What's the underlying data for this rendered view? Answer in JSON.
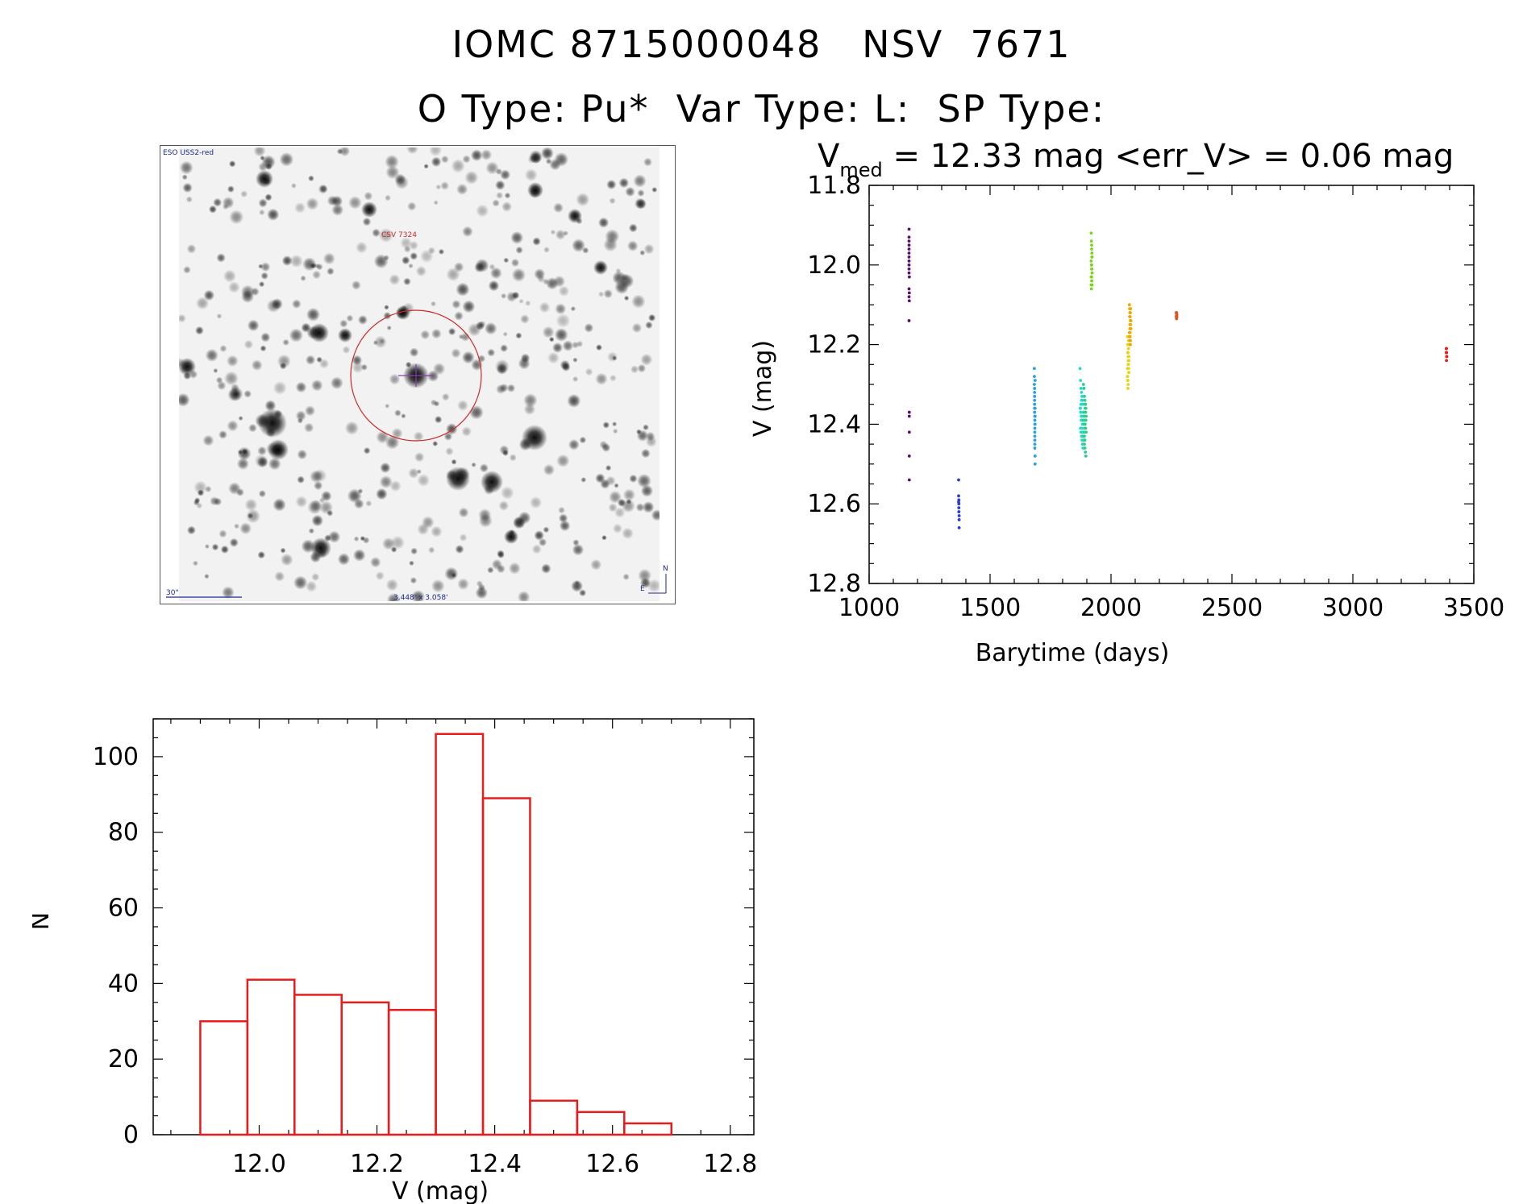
{
  "header": {
    "title_line1": "IOMC 8715000048   NSV  7671",
    "title_line2": "O Type: Pu*  Var Type: L:  SP Type:"
  },
  "finder": {
    "survey_label": "ESO USS2-red",
    "target_label": "CSV 7324",
    "scale_label": "30\"",
    "size_label": "3.448' x 3.058'",
    "north_label": "N",
    "east_label": "E",
    "colors": {
      "circle": "#cc2a2a",
      "annotation": "#1a2a8c",
      "cross": "#8a3db8"
    }
  },
  "chart_data": [
    {
      "type": "scatter",
      "title_parts": {
        "main": "V",
        "sub": "med",
        "rest": " = 12.33 mag <err_V> = 0.06 mag"
      },
      "xlabel": "Barytime (days)",
      "ylabel": "V (mag)",
      "xlim": [
        1000,
        3500
      ],
      "ylim": [
        12.8,
        11.8
      ],
      "y_inverted": true,
      "xticks": [
        1000,
        1500,
        2000,
        2500,
        3000,
        3500
      ],
      "yticks": [
        11.8,
        12.0,
        12.2,
        12.4,
        12.6,
        12.8
      ],
      "series": [
        {
          "color": "#5a0f6e",
          "x": [
            1165,
            1165,
            1165,
            1165,
            1165,
            1165,
            1165,
            1165,
            1165,
            1165,
            1165,
            1165,
            1165,
            1165,
            1166,
            1166,
            1166,
            1166,
            1166,
            1166,
            1166,
            1166
          ],
          "y": [
            11.91,
            11.93,
            11.95,
            11.96,
            11.97,
            11.98,
            11.99,
            12.0,
            12.01,
            12.02,
            12.06,
            12.08,
            12.14,
            11.94,
            12.37,
            12.38,
            12.42,
            12.48,
            12.54,
            12.03,
            12.07,
            12.09
          ]
        },
        {
          "color": "#2a3ae0",
          "x": [
            1370,
            1370,
            1371,
            1371,
            1371,
            1371,
            1372,
            1372,
            1372,
            1370
          ],
          "y": [
            12.54,
            12.58,
            12.59,
            12.6,
            12.61,
            12.62,
            12.64,
            12.66,
            12.63,
            12.595
          ]
        },
        {
          "color": "#2aa0e0",
          "x": [
            1683,
            1683,
            1683,
            1684,
            1684,
            1684,
            1684,
            1684,
            1684,
            1684,
            1685,
            1685,
            1685,
            1685,
            1685,
            1685,
            1685,
            1685,
            1685,
            1686,
            1686,
            1686,
            1686,
            1686,
            1686
          ],
          "y": [
            12.26,
            12.28,
            12.3,
            12.31,
            12.32,
            12.33,
            12.34,
            12.35,
            12.36,
            12.37,
            12.38,
            12.39,
            12.4,
            12.41,
            12.42,
            12.43,
            12.44,
            12.45,
            12.46,
            12.48,
            12.5,
            12.29,
            12.36,
            12.38,
            12.4
          ]
        },
        {
          "color": "#22d9d0",
          "x": [
            1872,
            1874,
            1876,
            1878,
            1880,
            1882,
            1884,
            1873,
            1875,
            1877,
            1879,
            1881,
            1883,
            1885,
            1874,
            1876,
            1878,
            1880,
            1882,
            1884,
            1873,
            1875,
            1877,
            1879,
            1881,
            1883,
            1876,
            1878,
            1880,
            1882
          ],
          "y": [
            12.26,
            12.29,
            12.31,
            12.32,
            12.33,
            12.34,
            12.35,
            12.36,
            12.37,
            12.38,
            12.38,
            12.39,
            12.4,
            12.4,
            12.41,
            12.42,
            12.43,
            12.44,
            12.45,
            12.46,
            12.36,
            12.37,
            12.39,
            12.41,
            12.42,
            12.43,
            12.35,
            12.34,
            12.38,
            12.4
          ]
        },
        {
          "color": "#2ad08a",
          "x": [
            1886,
            1888,
            1890,
            1892,
            1894,
            1896,
            1887,
            1889,
            1891,
            1893,
            1895,
            1897,
            1886,
            1888,
            1890,
            1892,
            1894,
            1896,
            1887,
            1889,
            1891,
            1893,
            1895,
            1897,
            1888,
            1890,
            1892,
            1894,
            1896,
            1890
          ],
          "y": [
            12.3,
            12.31,
            12.33,
            12.34,
            12.35,
            12.36,
            12.37,
            12.38,
            12.39,
            12.4,
            12.41,
            12.42,
            12.43,
            12.44,
            12.45,
            12.46,
            12.47,
            12.48,
            12.39,
            12.4,
            12.41,
            12.36,
            12.37,
            12.38,
            12.42,
            12.43,
            12.44,
            12.35,
            12.39,
            12.4
          ]
        },
        {
          "color": "#7ed321",
          "x": [
            1918,
            1919,
            1920,
            1921,
            1922,
            1918,
            1919,
            1920,
            1921,
            1922,
            1918,
            1919,
            1920,
            1921,
            1922,
            1918,
            1919,
            1920,
            1921,
            1922,
            1920,
            1920
          ],
          "y": [
            11.92,
            11.94,
            11.96,
            11.97,
            11.98,
            11.99,
            12.0,
            12.01,
            12.01,
            12.02,
            12.03,
            12.03,
            12.04,
            12.04,
            12.05,
            12.05,
            12.06,
            12.0,
            11.98,
            12.02,
            11.95,
            12.03
          ]
        },
        {
          "color": "#e8d419",
          "x": [
            2068,
            2069,
            2070,
            2071,
            2072,
            2073,
            2074,
            2068,
            2069,
            2070,
            2071,
            2072,
            2073,
            2074,
            2068,
            2069,
            2070,
            2071,
            2072,
            2073,
            2074,
            2070,
            2071,
            2072,
            2073,
            2069,
            2070,
            2071
          ],
          "y": [
            12.18,
            12.2,
            12.22,
            12.24,
            12.25,
            12.26,
            12.27,
            12.28,
            12.29,
            12.31,
            12.23,
            12.21,
            12.19,
            12.24,
            12.26,
            12.28,
            12.22,
            12.25,
            12.2,
            12.27,
            12.23,
            12.29,
            12.3,
            12.21,
            12.24,
            12.26,
            12.22,
            12.25
          ]
        },
        {
          "color": "#f0a800",
          "x": [
            2076,
            2077,
            2078,
            2079,
            2080,
            2081,
            2082,
            2076,
            2077,
            2078,
            2079,
            2080,
            2081,
            2082,
            2076,
            2077,
            2078,
            2079,
            2080,
            2081,
            2082,
            2078,
            2079,
            2080
          ],
          "y": [
            12.1,
            12.11,
            12.12,
            12.13,
            12.14,
            12.15,
            12.16,
            12.17,
            12.18,
            12.19,
            12.2,
            12.12,
            12.14,
            12.16,
            12.18,
            12.13,
            12.15,
            12.17,
            12.19,
            12.11,
            12.14,
            12.16,
            12.18,
            12.2
          ]
        },
        {
          "color": "#e8501c",
          "x": [
            2270,
            2271,
            2272,
            2270,
            2271,
            2272,
            2271
          ],
          "y": [
            12.12,
            12.125,
            12.13,
            12.13,
            12.12,
            12.125,
            12.135
          ]
        },
        {
          "color": "#e81c1c",
          "x": [
            3386,
            3387,
            3388,
            3386,
            3387,
            3388,
            3387,
            3387
          ],
          "y": [
            12.21,
            12.22,
            12.23,
            12.22,
            12.21,
            12.23,
            12.24,
            12.22
          ]
        }
      ]
    },
    {
      "type": "bar",
      "subtype": "histogram",
      "xlabel": "V (mag)",
      "ylabel": "N",
      "xlim": [
        11.82,
        12.84
      ],
      "ylim": [
        0,
        110
      ],
      "xticks": [
        "12.0",
        "12.2",
        "12.4",
        "12.6",
        "12.8"
      ],
      "yticks": [
        "0",
        "20",
        "40",
        "60",
        "80",
        "100"
      ],
      "bin_edges": [
        11.9,
        11.98,
        12.06,
        12.14,
        12.22,
        12.3,
        12.38,
        12.46,
        12.54,
        12.62,
        12.7
      ],
      "values": [
        30,
        41,
        37,
        35,
        33,
        106,
        89,
        9,
        6,
        3
      ],
      "color": "#e81c1c"
    }
  ]
}
